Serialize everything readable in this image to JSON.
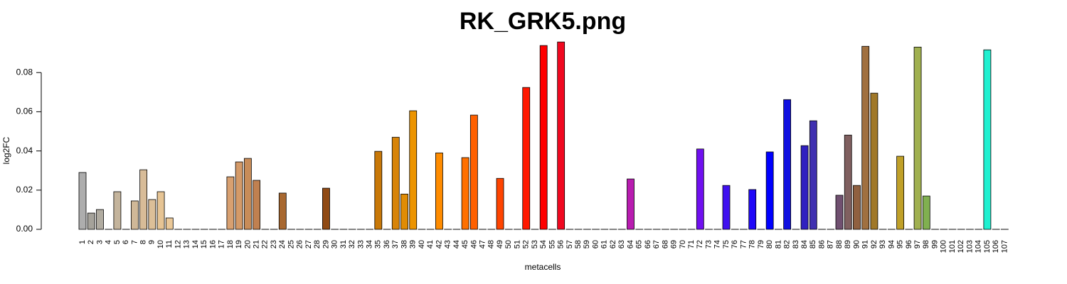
{
  "chart_data": {
    "type": "bar",
    "title": "RK_GRK5.png",
    "xlabel": "metacells",
    "ylabel": "log2FC",
    "categories": [
      "1",
      "2",
      "3",
      "4",
      "5",
      "6",
      "7",
      "8",
      "9",
      "10",
      "11",
      "12",
      "13",
      "14",
      "15",
      "16",
      "17",
      "18",
      "19",
      "20",
      "21",
      "22",
      "23",
      "24",
      "25",
      "26",
      "27",
      "28",
      "29",
      "30",
      "31",
      "32",
      "33",
      "34",
      "35",
      "36",
      "37",
      "38",
      "39",
      "40",
      "41",
      "42",
      "43",
      "44",
      "45",
      "46",
      "47",
      "48",
      "49",
      "50",
      "51",
      "52",
      "53",
      "54",
      "55",
      "56",
      "57",
      "58",
      "59",
      "60",
      "61",
      "62",
      "63",
      "64",
      "65",
      "66",
      "67",
      "68",
      "69",
      "70",
      "71",
      "72",
      "73",
      "74",
      "75",
      "76",
      "77",
      "78",
      "79",
      "80",
      "81",
      "82",
      "83",
      "84",
      "85",
      "86",
      "87",
      "88",
      "89",
      "90",
      "91",
      "92",
      "93",
      "94",
      "95",
      "96",
      "97",
      "98",
      "99",
      "100",
      "101",
      "102",
      "103",
      "104",
      "105",
      "106",
      "107"
    ],
    "values": [
      0.029,
      0.0083,
      0.0101,
      0,
      0.0192,
      0,
      0.0145,
      0.0304,
      0.0152,
      0.0192,
      0.0058,
      0,
      0,
      0,
      0,
      0,
      0,
      0.0268,
      0.0344,
      0.0362,
      0.025,
      0,
      0,
      0.0185,
      0,
      0,
      0,
      0,
      0.021,
      0,
      0,
      0,
      0,
      0,
      0.0398,
      0,
      0.047,
      0.018,
      0.0605,
      0,
      0,
      0.039,
      0,
      0,
      0.0366,
      0.0583,
      0,
      0,
      0.026,
      0,
      0,
      0.0724,
      0,
      0.0938,
      0,
      0.0956,
      0,
      0,
      0,
      0,
      0,
      0,
      0,
      0.0257,
      0,
      0,
      0,
      0,
      0,
      0,
      0,
      0.041,
      0,
      0,
      0.0224,
      0,
      0,
      0.0203,
      0,
      0.0395,
      0,
      0.0662,
      0,
      0.0427,
      0.0554,
      0,
      0,
      0.0174,
      0.0481,
      0.0224,
      0.0934,
      0.0695,
      0,
      0,
      0.0373,
      0,
      0.093,
      0.017,
      0,
      0,
      0,
      0,
      0,
      0,
      0.0916,
      0,
      0
    ],
    "colors": [
      "#adadad",
      "#a5a29a",
      "#b0aba0",
      "#888888",
      "#c4b49c",
      "#888888",
      "#d0b898",
      "#d8bc98",
      "#dcbf98",
      "#e6c494",
      "#eac898",
      "#888888",
      "#888888",
      "#888888",
      "#888888",
      "#888888",
      "#888888",
      "#d8a070",
      "#d49a68",
      "#c88c58",
      "#c08050",
      "#888888",
      "#888888",
      "#a86830",
      "#888888",
      "#888888",
      "#888888",
      "#888888",
      "#904a14",
      "#888888",
      "#888888",
      "#888888",
      "#888888",
      "#888888",
      "#c87808",
      "#888888",
      "#d88408",
      "#e08c04",
      "#ec9400",
      "#888888",
      "#888888",
      "#ff8c00",
      "#888888",
      "#888888",
      "#ff7000",
      "#ff6000",
      "#888888",
      "#888888",
      "#ff4400",
      "#888888",
      "#888888",
      "#ff1800",
      "#888888",
      "#ff0000",
      "#888888",
      "#f00820",
      "#888888",
      "#888888",
      "#888888",
      "#888888",
      "#888888",
      "#888888",
      "#888888",
      "#b81cb0",
      "#888888",
      "#888888",
      "#888888",
      "#888888",
      "#888888",
      "#888888",
      "#888888",
      "#7010f0",
      "#888888",
      "#888888",
      "#4010f0",
      "#888888",
      "#888888",
      "#2008f8",
      "#888888",
      "#0000ff",
      "#888888",
      "#1010e0",
      "#888888",
      "#3020c0",
      "#4030b0",
      "#888888",
      "#888888",
      "#705070",
      "#806060",
      "#906040",
      "#a07040",
      "#a07828",
      "#888888",
      "#888888",
      "#c0a028",
      "#888888",
      "#a0b050",
      "#80b050",
      "#888888",
      "#888888",
      "#888888",
      "#888888",
      "#888888",
      "#888888",
      "#20f0d0",
      "#888888",
      "#888888"
    ],
    "ylim": [
      0,
      0.1
    ],
    "yticks": [
      {
        "value": 0,
        "label": "0.00"
      },
      {
        "value": 0.02,
        "label": "0.02"
      },
      {
        "value": 0.04,
        "label": "0.04"
      },
      {
        "value": 0.06,
        "label": "0.06"
      },
      {
        "value": 0.08,
        "label": "0.08"
      }
    ]
  }
}
